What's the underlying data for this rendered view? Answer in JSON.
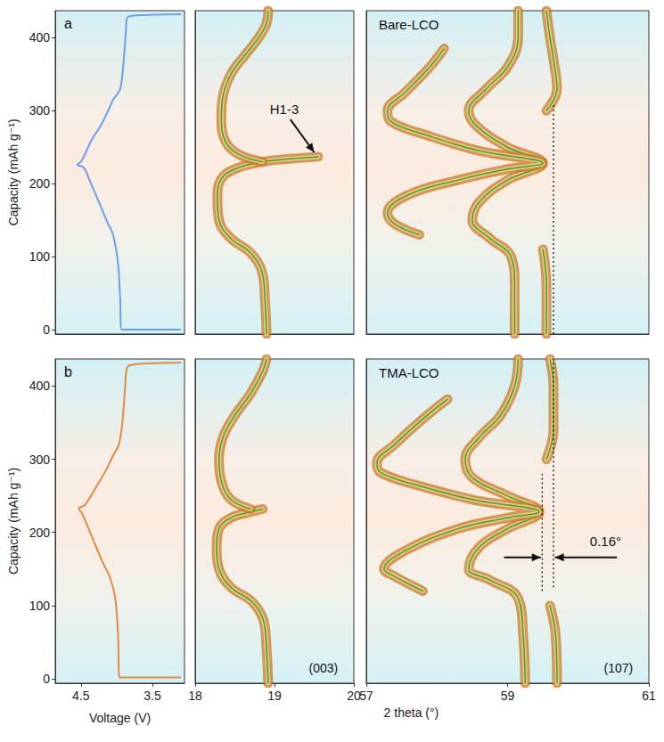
{
  "chart_data": [
    {
      "type": "line",
      "panel": "a",
      "ylabel": "Capacity (mAh g⁻¹)",
      "xlim": [
        4.86,
        3.05
      ],
      "ylim": [
        -6,
        437
      ],
      "yticks": [
        0,
        100,
        200,
        300,
        400
      ],
      "tick_labels": "y",
      "grid": false,
      "series": [
        {
          "color": "#6d9eeb",
          "x": [
            3.1,
            3.93,
            3.95,
            3.98,
            4.05,
            4.12,
            4.25,
            4.38,
            4.46,
            4.55,
            4.5,
            4.47,
            4.35,
            4.22,
            4.12,
            4.05,
            3.95,
            3.9,
            3.87,
            3.85,
            3.6,
            3.1
          ],
          "y": [
            0,
            0,
            40,
            90,
            130,
            145,
            175,
            205,
            222,
            226,
            230,
            235,
            260,
            280,
            300,
            315,
            330,
            370,
            410,
            428,
            431,
            432
          ]
        }
      ]
    },
    {
      "type": "line",
      "xlim": [
        18,
        20
      ],
      "ylim": [
        -6,
        437
      ],
      "tick_labels": false,
      "grid": false,
      "series": [
        {
          "color": "#c47a2c",
          "x": [
            18.9,
            18.88,
            18.84,
            18.7,
            18.45,
            18.3,
            18.28,
            18.32,
            18.5,
            18.85,
            19.2,
            19.55
          ],
          "y": [
            -6,
            40,
            80,
            105,
            125,
            150,
            180,
            205,
            220,
            230,
            234,
            237
          ]
        },
        {
          "color": "#c47a2c",
          "x": [
            18.85,
            18.55,
            18.38,
            18.33,
            18.35,
            18.45,
            18.62,
            18.8,
            18.9,
            18.92
          ],
          "y": [
            230,
            240,
            258,
            290,
            320,
            350,
            375,
            400,
            420,
            437
          ]
        }
      ],
      "annotations": [
        {
          "text": "H1-3",
          "x": 19.13,
          "y": 300,
          "arrow": {
            "from": [
              19.2,
              288
            ],
            "to": [
              19.5,
              243
            ]
          }
        }
      ]
    },
    {
      "type": "line",
      "title": "Bare-LCO",
      "xlim": [
        57,
        61
      ],
      "ylim": [
        -6,
        437
      ],
      "tick_labels": false,
      "grid": false,
      "series": [
        {
          "color": "#c47a2c",
          "x": [
            59.1,
            59.1,
            59.05,
            58.75,
            58.5,
            58.6,
            59.0,
            59.5,
            59.0,
            58.55,
            58.45,
            58.7,
            59.0,
            59.15,
            59.15
          ],
          "y": [
            -6,
            60,
            100,
            125,
            150,
            175,
            205,
            228,
            250,
            280,
            300,
            330,
            360,
            400,
            437
          ]
        },
        {
          "color": "#c47a2c",
          "x": [
            59.55,
            59.55,
            59.5
          ],
          "y": [
            -6,
            60,
            110
          ]
        },
        {
          "color": "#c47a2c",
          "x": [
            57.75,
            57.4,
            57.3,
            57.6,
            58.3,
            59.0,
            59.5,
            58.6,
            57.9,
            57.35,
            57.3,
            57.55,
            57.9,
            58.1
          ],
          "y": [
            130,
            145,
            160,
            185,
            205,
            220,
            228,
            245,
            265,
            285,
            300,
            325,
            360,
            385
          ]
        },
        {
          "color": "#c47a2c",
          "x": [
            59.55,
            59.7,
            59.65,
            59.6,
            59.55
          ],
          "y": [
            300,
            330,
            370,
            400,
            437
          ]
        }
      ],
      "vlines": [
        {
          "x": 59.65,
          "from": -6,
          "to": 310
        }
      ]
    },
    {
      "type": "line",
      "panel": "b",
      "ylabel": "Capacity (mAh g⁻¹)",
      "xlabel": "Voltage (V)",
      "xlim": [
        4.86,
        3.05
      ],
      "ylim": [
        -6,
        437
      ],
      "xticks": [
        4.5,
        3.5
      ],
      "yticks": [
        0,
        100,
        200,
        300,
        400
      ],
      "grid": false,
      "series": [
        {
          "color": "#e08a4a",
          "x": [
            3.1,
            3.96,
            3.98,
            4.02,
            4.1,
            4.2,
            4.35,
            4.48,
            4.53,
            4.45,
            4.3,
            4.15,
            4.05,
            3.97,
            3.92,
            3.88,
            3.85,
            3.7,
            3.1
          ],
          "y": [
            2,
            2,
            60,
            110,
            140,
            160,
            195,
            225,
            233,
            237,
            260,
            285,
            305,
            320,
            350,
            400,
            426,
            430,
            432
          ]
        }
      ]
    },
    {
      "type": "line",
      "label": "(003)",
      "xlabel": "2 theta (°)",
      "xlim": [
        18,
        20
      ],
      "ylim": [
        -6,
        437
      ],
      "xticks": [
        18,
        19,
        20
      ],
      "tick_labels": "x",
      "grid": false,
      "series": [
        {
          "color": "#c47a2c",
          "x": [
            18.92,
            18.9,
            18.86,
            18.72,
            18.45,
            18.3,
            18.27,
            18.3,
            18.45,
            18.7,
            18.85
          ],
          "y": [
            -6,
            40,
            80,
            105,
            125,
            150,
            180,
            205,
            220,
            228,
            232
          ]
        },
        {
          "color": "#c47a2c",
          "x": [
            18.7,
            18.45,
            18.33,
            18.3,
            18.35,
            18.5,
            18.7,
            18.85,
            18.9
          ],
          "y": [
            232,
            245,
            270,
            300,
            330,
            360,
            390,
            420,
            437
          ]
        }
      ]
    },
    {
      "type": "line",
      "title": "TMA-LCO",
      "label": "(107)",
      "xlim": [
        57,
        61
      ],
      "ylim": [
        -6,
        437
      ],
      "xticks": [
        57,
        59,
        61
      ],
      "tick_labels": "x",
      "grid": false,
      "series": [
        {
          "color": "#c47a2c",
          "x": [
            59.25,
            59.22,
            59.15,
            58.75,
            58.45,
            58.6,
            59.0,
            59.45,
            59.0,
            58.5,
            58.4,
            58.6,
            58.9,
            59.1,
            59.15
          ],
          "y": [
            -6,
            60,
            110,
            135,
            150,
            180,
            205,
            228,
            250,
            275,
            300,
            330,
            360,
            400,
            437
          ]
        },
        {
          "color": "#c47a2c",
          "x": [
            59.7,
            59.68,
            59.6
          ],
          "y": [
            -6,
            60,
            100
          ]
        },
        {
          "color": "#c47a2c",
          "x": [
            57.8,
            57.4,
            57.25,
            57.55,
            58.3,
            59.0,
            59.45,
            58.5,
            57.7,
            57.2,
            57.15,
            57.4,
            57.8,
            58.15
          ],
          "y": [
            120,
            140,
            150,
            175,
            205,
            220,
            228,
            245,
            265,
            282,
            295,
            320,
            355,
            382
          ]
        },
        {
          "color": "#c47a2c",
          "x": [
            59.55,
            59.65,
            59.65,
            59.6
          ],
          "y": [
            300,
            340,
            400,
            437
          ]
        }
      ],
      "vlines": [
        {
          "x": 59.65,
          "from": 125,
          "to": 437
        },
        {
          "x": 59.49,
          "from": 120,
          "to": 280
        }
      ],
      "annotations": [
        {
          "text": "0.16°",
          "x": 60.43,
          "y": 186
        }
      ],
      "arrows": [
        {
          "from": [
            58.95,
            166
          ],
          "to": [
            59.47,
            166
          ]
        },
        {
          "from": [
            60.55,
            166
          ],
          "to": [
            59.67,
            166
          ]
        }
      ]
    }
  ]
}
